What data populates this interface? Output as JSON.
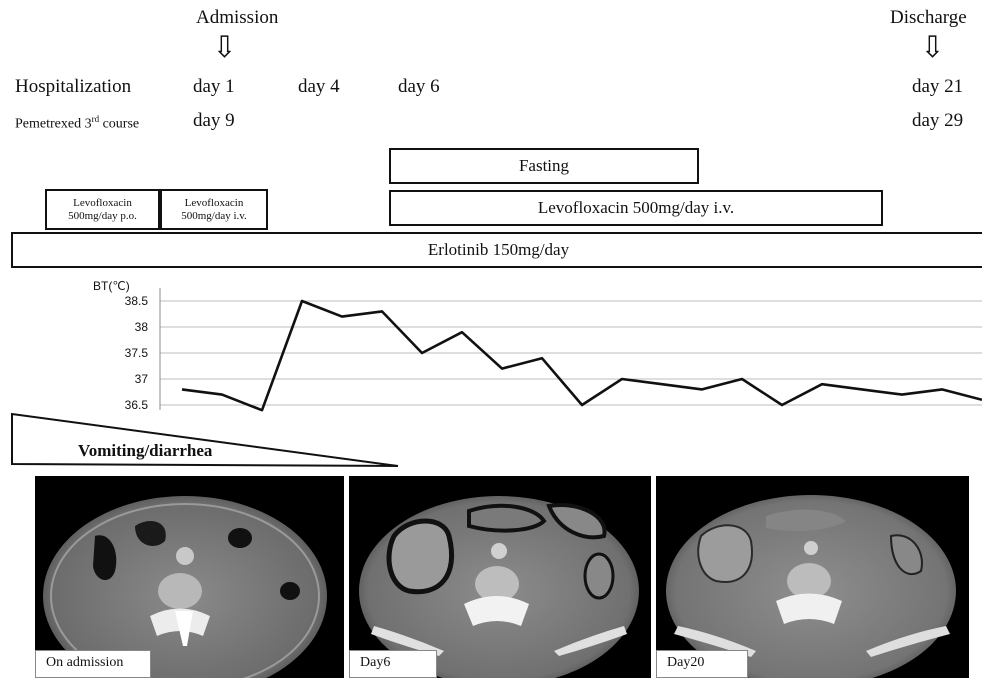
{
  "timeline": {
    "admission_label": "Admission",
    "discharge_label": "Discharge",
    "arrow_glyph": "⇩",
    "hospitalization_label": "Hospitalization",
    "pemetrexed_label_main": "Pemetrexed 3",
    "pemetrexed_label_sup": "rd",
    "pemetrexed_label_tail": " course",
    "hosp_days": [
      "day 1",
      "day 4",
      "day 6",
      "day 21"
    ],
    "pem_days": [
      "day 9",
      "day 29"
    ]
  },
  "treatments": {
    "fasting": "Fasting",
    "levo_po_line1": "Levofloxacin",
    "levo_po_line2": "500mg/day p.o.",
    "levo_iv_line1": "Levofloxacin",
    "levo_iv_line2": "500mg/day i.v.",
    "levo_iv_long": "Levofloxacin 500mg/day i.v.",
    "erlotinib": "Erlotinib 150mg/day"
  },
  "chart_data": {
    "type": "line",
    "ylabel": "BT(℃)",
    "yticks": [
      "38.5",
      "38",
      "37.5",
      "37",
      "36.5"
    ],
    "ylim": [
      36.5,
      38.5
    ],
    "grid": true,
    "series": [
      {
        "values": [
          36.8,
          36.7,
          36.4,
          38.5,
          38.2,
          38.3,
          37.5,
          37.9,
          37.2,
          37.4,
          36.5,
          37.0,
          36.9,
          36.8,
          37.0,
          36.5,
          36.9,
          36.8,
          36.7,
          36.8,
          36.6
        ]
      }
    ]
  },
  "symptom": {
    "label": "Vomiting/diarrhea"
  },
  "ct_images": [
    {
      "caption": "On admission"
    },
    {
      "caption": "Day6"
    },
    {
      "caption": "Day20"
    }
  ]
}
